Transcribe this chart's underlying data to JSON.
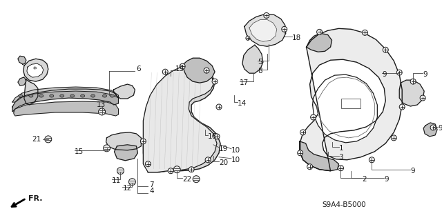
{
  "background_color": "#ffffff",
  "diagram_code": "S9A4-B5000",
  "arrow_label": "FR.",
  "line_color": "#1a1a1a",
  "text_color": "#1a1a1a",
  "fig_width": 6.4,
  "fig_height": 3.19,
  "dpi": 100,
  "fill_light": "#d8d8d8",
  "fill_mid": "#c0c0c0",
  "fill_dark": "#a0a0a0"
}
